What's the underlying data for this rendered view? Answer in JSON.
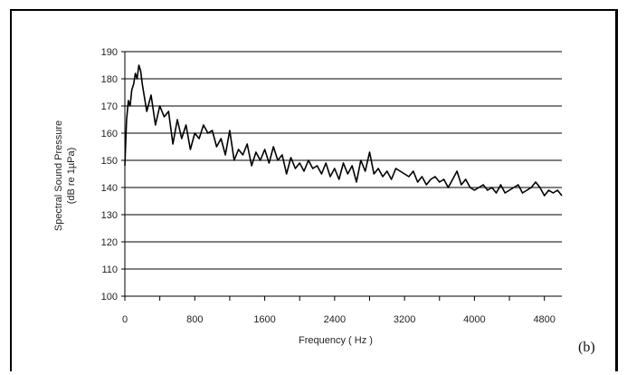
{
  "chart_data": {
    "type": "line",
    "panel_label": "(b)",
    "xlabel": "Frequency ( Hz )",
    "ylabel_line1": "Spectral Sound Pressure",
    "ylabel_line2": "(dB re 1µPa)",
    "xlim": [
      0,
      5000
    ],
    "ylim": [
      100,
      190
    ],
    "x_ticks": [
      "0",
      "800",
      "1600",
      "2400",
      "3200",
      "4000",
      "4800"
    ],
    "y_ticks": [
      "100",
      "110",
      "120",
      "130",
      "140",
      "150",
      "160",
      "170",
      "180",
      "190"
    ],
    "grid": "horizontal",
    "legend": "none",
    "series": [
      {
        "color": "#000000",
        "x": [
          0,
          20,
          40,
          60,
          80,
          100,
          120,
          140,
          160,
          180,
          200,
          250,
          300,
          350,
          400,
          450,
          500,
          550,
          600,
          650,
          700,
          750,
          800,
          850,
          900,
          950,
          1000,
          1050,
          1100,
          1150,
          1200,
          1250,
          1300,
          1350,
          1400,
          1450,
          1500,
          1550,
          1600,
          1650,
          1700,
          1750,
          1800,
          1850,
          1900,
          1950,
          2000,
          2050,
          2100,
          2150,
          2200,
          2250,
          2300,
          2350,
          2400,
          2450,
          2500,
          2550,
          2600,
          2650,
          2700,
          2750,
          2800,
          2850,
          2900,
          2950,
          3000,
          3050,
          3100,
          3150,
          3200,
          3250,
          3300,
          3350,
          3400,
          3450,
          3500,
          3550,
          3600,
          3650,
          3700,
          3750,
          3800,
          3850,
          3900,
          3950,
          4000,
          4050,
          4100,
          4150,
          4200,
          4250,
          4300,
          4350,
          4400,
          4450,
          4500,
          4550,
          4600,
          4650,
          4700,
          4750,
          4800,
          4850,
          4900,
          4950,
          5000
        ],
        "y": [
          148,
          165,
          172,
          170,
          176,
          178,
          182,
          180,
          185,
          183,
          178,
          168,
          174,
          163,
          170,
          166,
          168,
          156,
          165,
          158,
          163,
          154,
          160,
          158,
          163,
          160,
          161,
          155,
          158,
          152,
          161,
          150,
          154,
          152,
          156,
          148,
          153,
          150,
          154,
          149,
          155,
          150,
          152,
          145,
          151,
          147,
          149,
          146,
          150,
          147,
          148,
          145,
          149,
          144,
          147,
          143,
          149,
          145,
          148,
          142,
          150,
          146,
          153,
          145,
          147,
          144,
          146,
          143,
          147,
          146,
          145,
          144,
          146,
          142,
          144,
          141,
          143,
          144,
          142,
          143,
          140,
          143,
          146,
          141,
          143,
          140,
          139,
          140,
          141,
          139,
          140,
          138,
          141,
          138,
          139,
          140,
          141,
          138,
          139,
          140,
          142,
          140,
          137,
          139,
          138,
          139,
          137
        ]
      }
    ]
  }
}
